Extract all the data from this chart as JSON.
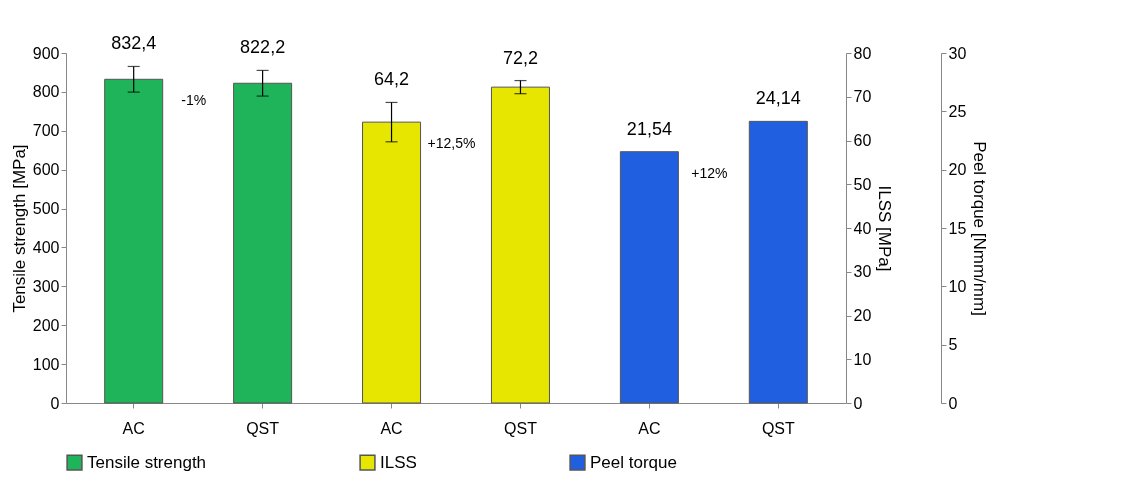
{
  "chart_data": {
    "type": "bar",
    "categories": [
      "AC",
      "QST",
      "AC",
      "QST",
      "AC",
      "QST"
    ],
    "ylabel": "Tensile strength [MPa]",
    "y2label": "ILSS [MPa]",
    "y3label": "Peel torque [Nmm/mm]",
    "ylim": [
      0,
      900
    ],
    "yticks": [
      0,
      100,
      200,
      300,
      400,
      500,
      600,
      700,
      800,
      900
    ],
    "y2lim": [
      0,
      80
    ],
    "y2ticks": [
      0,
      10,
      20,
      30,
      40,
      50,
      60,
      70,
      80
    ],
    "y3lim": [
      0,
      30
    ],
    "y3ticks": [
      0,
      5,
      10,
      15,
      20,
      25,
      30
    ],
    "series": [
      {
        "name": "Tensile strength",
        "color": "#1fb45a",
        "values": [
          832.4,
          822.2,
          null,
          null,
          null,
          null
        ],
        "errors": [
          33,
          33,
          null,
          null,
          null,
          null
        ],
        "value_labels": [
          "832,4",
          "822,2",
          null,
          null,
          null,
          null
        ]
      },
      {
        "name": "ILSS",
        "color": "#e6e600",
        "axis": "y2",
        "values": [
          null,
          null,
          64.2,
          72.2,
          null,
          null
        ],
        "errors": [
          null,
          null,
          4.5,
          1.5,
          null,
          null
        ],
        "value_labels": [
          null,
          null,
          "64,2",
          "72,2",
          null,
          null
        ]
      },
      {
        "name": "Peel torque",
        "color": "#2060e0",
        "axis": "y3",
        "values": [
          null,
          null,
          null,
          null,
          21.54,
          24.14
        ],
        "value_labels": [
          null,
          null,
          null,
          null,
          "21,54",
          "24,14"
        ]
      }
    ],
    "annotations": [
      "-1%",
      "+12,5%",
      "+12%"
    ],
    "legend": "bottom",
    "grid": false
  }
}
